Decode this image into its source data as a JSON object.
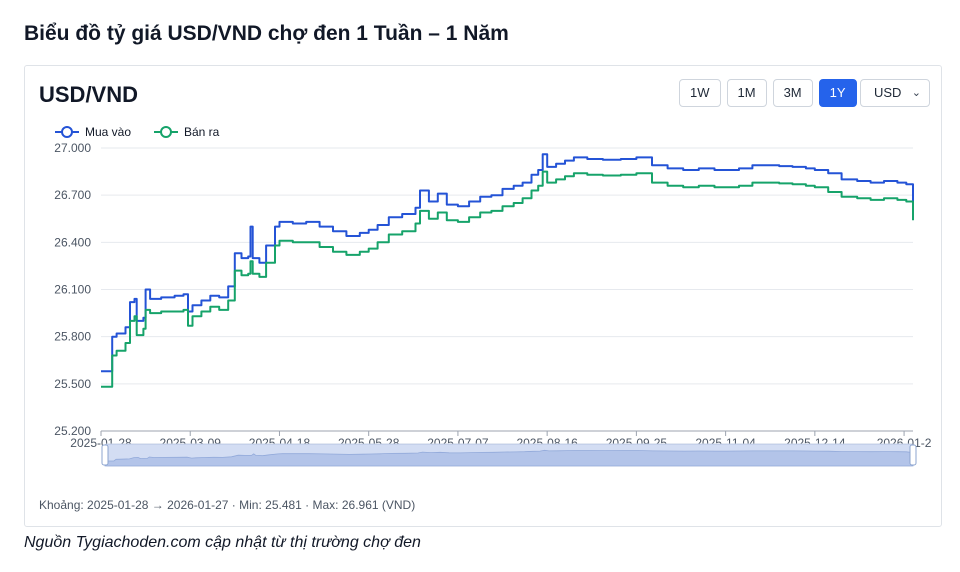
{
  "page": {
    "title": "Biểu đồ tỷ giá USD/VND chợ đen 1 Tuần – 1 Năm",
    "source": "Nguồn Tygiachoden.com cập nhật từ thị trường chợ đen"
  },
  "card": {
    "title": "USD/VND",
    "ranges": [
      "1W",
      "1M",
      "3M",
      "1Y"
    ],
    "active_range": "1Y",
    "currency": "USD",
    "footer": "Khoảng: 2025-01-28 → 2026-01-27 · Min: 25.481 · Max: 26.961 (VND)"
  },
  "colors": {
    "buy": "#2453d6",
    "sell": "#16a36a",
    "active_button": "#2563eb"
  },
  "chart_data": {
    "type": "line",
    "ylim": [
      25200,
      27000
    ],
    "yticks": [
      25200,
      25500,
      25800,
      26100,
      26400,
      26700,
      27000
    ],
    "ytick_labels": [
      "25.200",
      "25.500",
      "25.800",
      "26.100",
      "26.400",
      "26.700",
      "27.000"
    ],
    "x_start": "2025-01-28",
    "x_end": "2026-01-27",
    "xticks": [
      "2025-01-28",
      "2025-03-09",
      "2025-04-18",
      "2025-05-28",
      "2025-07-07",
      "2025-08-16",
      "2025-09-25",
      "2025-11-04",
      "2025-12-14",
      "2026-01-2"
    ],
    "legend_position": "top-left",
    "grid": true,
    "series": [
      {
        "name": "Mua vào",
        "color": "#2453d6",
        "points": [
          [
            "2025-01-28",
            25580
          ],
          [
            "2025-02-01",
            25580
          ],
          [
            "2025-02-02",
            25800
          ],
          [
            "2025-02-04",
            25820
          ],
          [
            "2025-02-08",
            25860
          ],
          [
            "2025-02-10",
            26020
          ],
          [
            "2025-02-12",
            26040
          ],
          [
            "2025-02-13",
            25900
          ],
          [
            "2025-02-16",
            25920
          ],
          [
            "2025-02-17",
            26100
          ],
          [
            "2025-02-19",
            26040
          ],
          [
            "2025-02-24",
            26050
          ],
          [
            "2025-03-02",
            26060
          ],
          [
            "2025-03-06",
            26070
          ],
          [
            "2025-03-08",
            25960
          ],
          [
            "2025-03-10",
            26000
          ],
          [
            "2025-03-14",
            26030
          ],
          [
            "2025-03-18",
            26060
          ],
          [
            "2025-03-22",
            26050
          ],
          [
            "2025-03-26",
            26120
          ],
          [
            "2025-03-29",
            26330
          ],
          [
            "2025-04-01",
            26300
          ],
          [
            "2025-04-04",
            26310
          ],
          [
            "2025-04-05",
            26500
          ],
          [
            "2025-04-06",
            26300
          ],
          [
            "2025-04-09",
            26270
          ],
          [
            "2025-04-12",
            26380
          ],
          [
            "2025-04-16",
            26500
          ],
          [
            "2025-04-18",
            26530
          ],
          [
            "2025-04-24",
            26520
          ],
          [
            "2025-04-30",
            26530
          ],
          [
            "2025-05-06",
            26500
          ],
          [
            "2025-05-12",
            26470
          ],
          [
            "2025-05-18",
            26440
          ],
          [
            "2025-05-24",
            26460
          ],
          [
            "2025-05-28",
            26480
          ],
          [
            "2025-06-01",
            26510
          ],
          [
            "2025-06-06",
            26560
          ],
          [
            "2025-06-12",
            26580
          ],
          [
            "2025-06-18",
            26620
          ],
          [
            "2025-06-20",
            26730
          ],
          [
            "2025-06-24",
            26660
          ],
          [
            "2025-06-28",
            26710
          ],
          [
            "2025-07-02",
            26640
          ],
          [
            "2025-07-07",
            26630
          ],
          [
            "2025-07-12",
            26660
          ],
          [
            "2025-07-17",
            26690
          ],
          [
            "2025-07-22",
            26700
          ],
          [
            "2025-07-27",
            26740
          ],
          [
            "2025-08-01",
            26760
          ],
          [
            "2025-08-05",
            26780
          ],
          [
            "2025-08-09",
            26830
          ],
          [
            "2025-08-12",
            26860
          ],
          [
            "2025-08-14",
            26960
          ],
          [
            "2025-08-16",
            26880
          ],
          [
            "2025-08-20",
            26900
          ],
          [
            "2025-08-24",
            26920
          ],
          [
            "2025-08-28",
            26940
          ],
          [
            "2025-09-03",
            26930
          ],
          [
            "2025-09-10",
            26925
          ],
          [
            "2025-09-18",
            26930
          ],
          [
            "2025-09-25",
            26940
          ],
          [
            "2025-10-02",
            26890
          ],
          [
            "2025-10-09",
            26870
          ],
          [
            "2025-10-16",
            26860
          ],
          [
            "2025-10-23",
            26870
          ],
          [
            "2025-10-30",
            26860
          ],
          [
            "2025-11-04",
            26860
          ],
          [
            "2025-11-10",
            26870
          ],
          [
            "2025-11-16",
            26890
          ],
          [
            "2025-11-22",
            26890
          ],
          [
            "2025-11-28",
            26885
          ],
          [
            "2025-12-04",
            26880
          ],
          [
            "2025-12-10",
            26870
          ],
          [
            "2025-12-14",
            26860
          ],
          [
            "2025-12-20",
            26840
          ],
          [
            "2025-12-26",
            26800
          ],
          [
            "2026-01-02",
            26790
          ],
          [
            "2026-01-08",
            26780
          ],
          [
            "2026-01-14",
            26790
          ],
          [
            "2026-01-20",
            26780
          ],
          [
            "2026-01-24",
            26770
          ],
          [
            "2026-01-27",
            26660
          ]
        ]
      },
      {
        "name": "Bán ra",
        "color": "#16a36a",
        "points": [
          [
            "2025-01-28",
            25481
          ],
          [
            "2025-02-01",
            25481
          ],
          [
            "2025-02-02",
            25680
          ],
          [
            "2025-02-04",
            25710
          ],
          [
            "2025-02-08",
            25760
          ],
          [
            "2025-02-10",
            25900
          ],
          [
            "2025-02-12",
            25930
          ],
          [
            "2025-02-13",
            25810
          ],
          [
            "2025-02-16",
            25850
          ],
          [
            "2025-02-17",
            25970
          ],
          [
            "2025-02-19",
            25950
          ],
          [
            "2025-02-24",
            25960
          ],
          [
            "2025-03-02",
            25960
          ],
          [
            "2025-03-06",
            25970
          ],
          [
            "2025-03-08",
            25870
          ],
          [
            "2025-03-10",
            25930
          ],
          [
            "2025-03-14",
            25960
          ],
          [
            "2025-03-18",
            25990
          ],
          [
            "2025-03-22",
            25970
          ],
          [
            "2025-03-26",
            26030
          ],
          [
            "2025-03-29",
            26220
          ],
          [
            "2025-04-01",
            26190
          ],
          [
            "2025-04-04",
            26200
          ],
          [
            "2025-04-05",
            26280
          ],
          [
            "2025-04-06",
            26200
          ],
          [
            "2025-04-09",
            26180
          ],
          [
            "2025-04-12",
            26270
          ],
          [
            "2025-04-16",
            26380
          ],
          [
            "2025-04-18",
            26410
          ],
          [
            "2025-04-24",
            26400
          ],
          [
            "2025-04-30",
            26400
          ],
          [
            "2025-05-06",
            26370
          ],
          [
            "2025-05-12",
            26340
          ],
          [
            "2025-05-18",
            26320
          ],
          [
            "2025-05-24",
            26340
          ],
          [
            "2025-05-28",
            26360
          ],
          [
            "2025-06-01",
            26400
          ],
          [
            "2025-06-06",
            26450
          ],
          [
            "2025-06-12",
            26470
          ],
          [
            "2025-06-18",
            26520
          ],
          [
            "2025-06-20",
            26600
          ],
          [
            "2025-06-24",
            26550
          ],
          [
            "2025-06-28",
            26590
          ],
          [
            "2025-07-02",
            26540
          ],
          [
            "2025-07-07",
            26530
          ],
          [
            "2025-07-12",
            26560
          ],
          [
            "2025-07-17",
            26590
          ],
          [
            "2025-07-22",
            26600
          ],
          [
            "2025-07-27",
            26630
          ],
          [
            "2025-08-01",
            26650
          ],
          [
            "2025-08-05",
            26680
          ],
          [
            "2025-08-09",
            26730
          ],
          [
            "2025-08-12",
            26760
          ],
          [
            "2025-08-14",
            26850
          ],
          [
            "2025-08-16",
            26780
          ],
          [
            "2025-08-20",
            26800
          ],
          [
            "2025-08-24",
            26820
          ],
          [
            "2025-08-28",
            26840
          ],
          [
            "2025-09-03",
            26830
          ],
          [
            "2025-09-10",
            26825
          ],
          [
            "2025-09-18",
            26830
          ],
          [
            "2025-09-25",
            26840
          ],
          [
            "2025-10-02",
            26780
          ],
          [
            "2025-10-09",
            26760
          ],
          [
            "2025-10-16",
            26750
          ],
          [
            "2025-10-23",
            26760
          ],
          [
            "2025-10-30",
            26750
          ],
          [
            "2025-11-04",
            26750
          ],
          [
            "2025-11-10",
            26760
          ],
          [
            "2025-11-16",
            26780
          ],
          [
            "2025-11-22",
            26780
          ],
          [
            "2025-11-28",
            26775
          ],
          [
            "2025-12-04",
            26770
          ],
          [
            "2025-12-10",
            26760
          ],
          [
            "2025-12-14",
            26750
          ],
          [
            "2025-12-20",
            26720
          ],
          [
            "2025-12-26",
            26690
          ],
          [
            "2026-01-02",
            26680
          ],
          [
            "2026-01-08",
            26670
          ],
          [
            "2026-01-14",
            26680
          ],
          [
            "2026-01-20",
            26670
          ],
          [
            "2026-01-24",
            26660
          ],
          [
            "2026-01-27",
            26540
          ]
        ]
      }
    ]
  }
}
